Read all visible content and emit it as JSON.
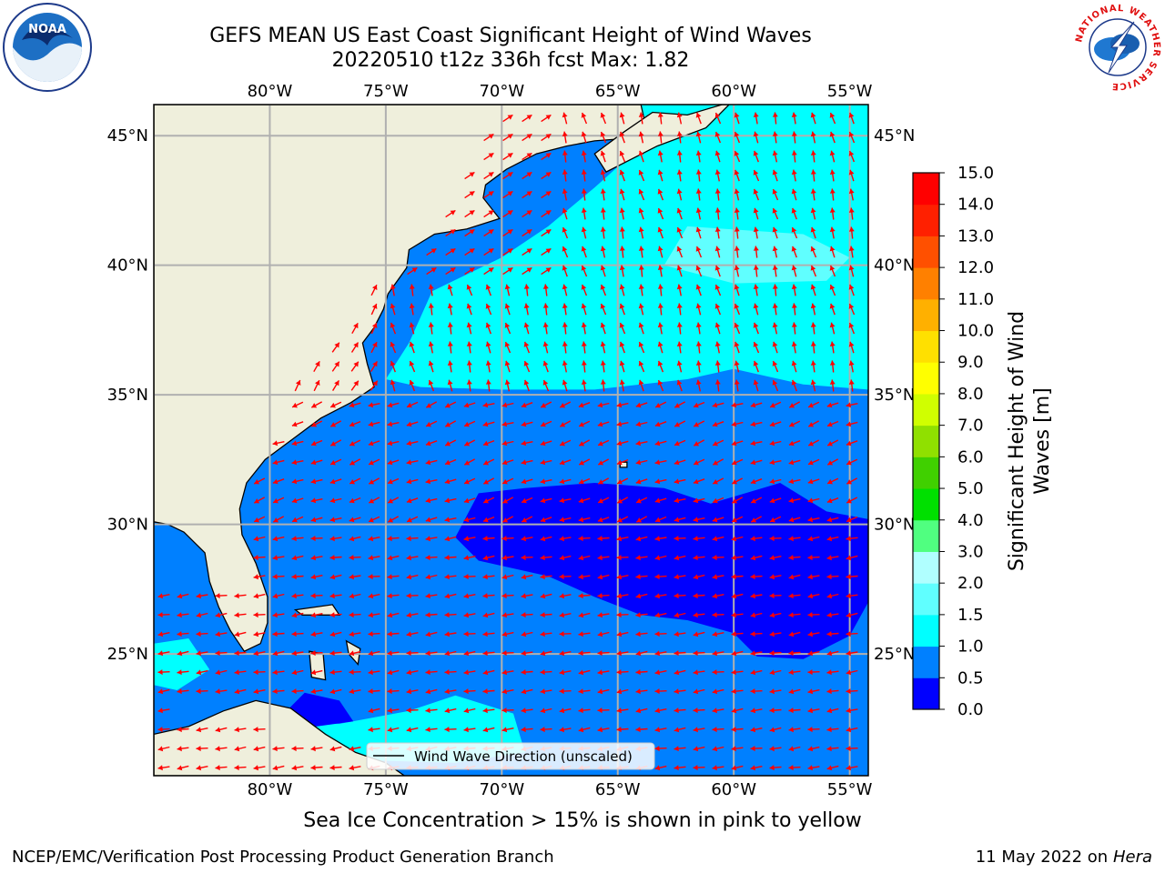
{
  "title": {
    "line1": "GEFS MEAN US East Coast Significant Height of Wind Waves",
    "line2": "20220510 t12z 336h fcst    Max: 1.82"
  },
  "map": {
    "lon_ticks": [
      "80°W",
      "75°W",
      "70°W",
      "65°W",
      "60°W",
      "55°W"
    ],
    "lat_ticks": [
      "45°N",
      "40°N",
      "35°N",
      "30°N",
      "25°N"
    ],
    "lon_range": [
      -85,
      -54.2
    ],
    "lat_range": [
      20.3,
      46.2
    ],
    "legend_label": "Wind Wave Direction (unscaled)",
    "arrow_color": "#ff0000",
    "land_color": "#efefdc"
  },
  "colorbar": {
    "label": "Significant Height of Wind Waves [m]",
    "ticks": [
      "0.0",
      "0.5",
      "1.0",
      "1.5",
      "2.0",
      "3.0",
      "4.0",
      "5.0",
      "6.0",
      "7.0",
      "8.0",
      "9.0",
      "10.0",
      "11.0",
      "12.0",
      "13.0",
      "14.0",
      "15.0"
    ],
    "colors": [
      "#0000ff",
      "#0080ff",
      "#00ffff",
      "#60ffff",
      "#b0ffff",
      "#50ff80",
      "#00e000",
      "#40d000",
      "#90e000",
      "#d0ff00",
      "#ffff00",
      "#ffe000",
      "#ffb000",
      "#ff8000",
      "#ff5000",
      "#ff2000",
      "#ff0000"
    ]
  },
  "logos": {
    "noaa": "NOAA",
    "nws_text": "NATIONAL WEATHER SERVICE"
  },
  "footer": {
    "note": "Sea Ice Concentration > 15% is shown in pink to yellow",
    "credit": "NCEP/EMC/Verification Post Processing Product Generation Branch",
    "date": "11 May 2022 on",
    "host": "Hera"
  }
}
